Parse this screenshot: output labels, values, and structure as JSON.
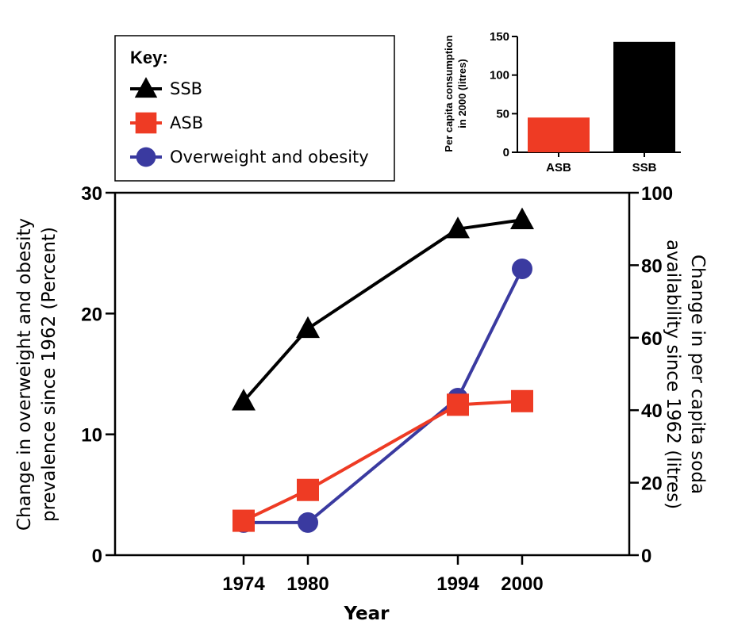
{
  "chart_data": [
    {
      "type": "line",
      "x": [
        1974,
        1980,
        1994,
        2000
      ],
      "xticks": [
        "1974",
        "1980",
        "1994",
        "2000"
      ],
      "xlabel": "Year",
      "ylabel": "Change in overweight and obesity prevalence since 1962 (Percent)",
      "ylim": [
        0,
        30
      ],
      "yticks": [
        0,
        10,
        20,
        30
      ],
      "y2label": "Change in per capita soda availability since 1962 (litres)",
      "y2lim": [
        0,
        100
      ],
      "y2ticks": [
        0,
        20,
        40,
        60,
        80,
        100
      ],
      "grid": false,
      "series": [
        {
          "name": "SSB",
          "axis": "right",
          "values": [
            42.5,
            62.5,
            90,
            92.5
          ],
          "color": "#000000",
          "marker": "triangle"
        },
        {
          "name": "ASB",
          "axis": "right",
          "values": [
            9.5,
            18,
            41.5,
            42.5
          ],
          "color": "#ee3b24",
          "marker": "square"
        },
        {
          "name": "Overweight and obesity",
          "axis": "left",
          "values": [
            2.7,
            2.7,
            13,
            23.7
          ],
          "color": "#3a3aa0",
          "marker": "circle"
        }
      ]
    },
    {
      "type": "bar",
      "categories": [
        "ASB",
        "SSB"
      ],
      "values": [
        45,
        143
      ],
      "colors": [
        "#ee3b24",
        "#000000"
      ],
      "ylabel": "Per capita consumption in 2000 (litres)",
      "ylim": [
        0,
        150
      ],
      "yticks": [
        0,
        50,
        100,
        150
      ]
    }
  ],
  "legend": {
    "title": "Key:",
    "items": [
      {
        "label": "SSB",
        "marker": "triangle",
        "color": "#000000"
      },
      {
        "label": "ASB",
        "marker": "square",
        "color": "#ee3b24"
      },
      {
        "label": "Overweight and obesity",
        "marker": "circle",
        "color": "#3a3aa0"
      }
    ]
  },
  "labels": {
    "y_left_line1": "Change in overweight and obesity",
    "y_left_line2": "prevalence since 1962 (Percent)",
    "y_right_line1": "Change in per capita soda",
    "y_right_line2": "availability since 1962 (litres)",
    "inset_y_line1": "Per capita consumption",
    "inset_y_line2": "in 2000 (litres)"
  }
}
